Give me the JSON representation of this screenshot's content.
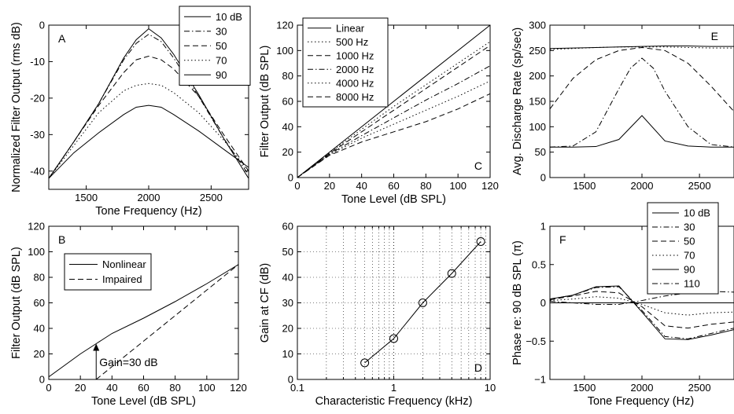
{
  "chart_data": [
    {
      "id": "A",
      "type": "line",
      "panel_label": "A",
      "xlabel": "Tone Frequency (Hz)",
      "ylabel": "Normalized Filter Output (rms dB)",
      "xlim": [
        1200,
        2800
      ],
      "ylim": [
        -45,
        0
      ],
      "xticks": [
        1500,
        2000,
        2500
      ],
      "yticks": [
        -40,
        -30,
        -20,
        -10,
        0
      ],
      "grid": false,
      "legend": "top-right",
      "series": [
        {
          "name": "10 dB",
          "dash": "solid",
          "x": [
            1200,
            1400,
            1600,
            1800,
            1900,
            2000,
            2100,
            2200,
            2400,
            2600,
            2800
          ],
          "y": [
            -42,
            -32,
            -21.5,
            -9,
            -4,
            -1,
            -3.5,
            -8,
            -19,
            -31,
            -42
          ]
        },
        {
          "name": "30",
          "dash": "dashdot",
          "x": [
            1200,
            1400,
            1600,
            1800,
            1900,
            2000,
            2100,
            2200,
            2400,
            2600,
            2800
          ],
          "y": [
            -42,
            -32,
            -21.5,
            -9.5,
            -5,
            -2.5,
            -4.5,
            -9,
            -19.5,
            -31,
            -41
          ]
        },
        {
          "name": "50",
          "dash": "dashed",
          "x": [
            1200,
            1400,
            1600,
            1800,
            1900,
            2000,
            2100,
            2200,
            2400,
            2600,
            2800
          ],
          "y": [
            -42,
            -32,
            -22,
            -13,
            -9.5,
            -8.5,
            -9.5,
            -12,
            -19.5,
            -30,
            -40
          ]
        },
        {
          "name": "70",
          "dash": "dotted",
          "x": [
            1200,
            1400,
            1600,
            1800,
            1900,
            2000,
            2100,
            2200,
            2400,
            2600,
            2800
          ],
          "y": [
            -42,
            -33,
            -24,
            -18,
            -16.5,
            -16,
            -16.5,
            -18.5,
            -24,
            -31.5,
            -40
          ]
        },
        {
          "name": "90",
          "dash": "solid",
          "x": [
            1200,
            1400,
            1600,
            1800,
            1900,
            2000,
            2100,
            2200,
            2400,
            2600,
            2800
          ],
          "y": [
            -42,
            -35,
            -29.5,
            -24.5,
            -22.5,
            -22,
            -22.5,
            -24.5,
            -29,
            -34,
            -39
          ]
        }
      ]
    },
    {
      "id": "C",
      "type": "line",
      "panel_label": "C",
      "xlabel": "Tone Level (dB SPL)",
      "ylabel": "Filter Output (dB SPL)",
      "xlim": [
        0,
        120
      ],
      "ylim": [
        0,
        120
      ],
      "xticks": [
        0,
        20,
        40,
        60,
        80,
        100,
        120
      ],
      "yticks": [
        0,
        20,
        40,
        60,
        80,
        100,
        120
      ],
      "grid": false,
      "legend": "top-left",
      "series": [
        {
          "name": "Linear",
          "dash": "solid",
          "x": [
            0,
            120
          ],
          "y": [
            0,
            120
          ]
        },
        {
          "name": "500 Hz",
          "dash": "dotted",
          "x": [
            0,
            20,
            40,
            60,
            80,
            100,
            120
          ],
          "y": [
            0,
            19.5,
            38,
            56,
            73,
            90,
            107
          ]
        },
        {
          "name": "1000 Hz",
          "dash": "dashed",
          "x": [
            0,
            20,
            40,
            60,
            80,
            100,
            120
          ],
          "y": [
            0,
            19,
            36,
            53,
            70,
            87,
            104
          ]
        },
        {
          "name": "2000 Hz",
          "dash": "dashdot",
          "x": [
            0,
            20,
            40,
            60,
            80,
            100,
            120
          ],
          "y": [
            0,
            18.5,
            33,
            47,
            61,
            74,
            88
          ]
        },
        {
          "name": "4000 Hz",
          "dash": "dotted",
          "x": [
            0,
            20,
            40,
            60,
            80,
            100,
            120
          ],
          "y": [
            0,
            18,
            31,
            42,
            53,
            64,
            76
          ]
        },
        {
          "name": "8000 Hz",
          "dash": "dashed",
          "x": [
            0,
            20,
            40,
            60,
            80,
            100,
            120
          ],
          "y": [
            0,
            17.5,
            28,
            36,
            44,
            54,
            66
          ]
        }
      ]
    },
    {
      "id": "E",
      "type": "line",
      "panel_label": "E",
      "xlabel": "",
      "ylabel": "Avg. Discharge Rate (sp/sec)",
      "xlim": [
        1200,
        2800
      ],
      "ylim": [
        0,
        300
      ],
      "xticks": [
        1500,
        2000,
        2500
      ],
      "yticks": [
        0,
        50,
        100,
        150,
        200,
        250,
        300
      ],
      "grid": false,
      "legend": "none",
      "series": [
        {
          "name": "10 dB",
          "dash": "solid",
          "x": [
            1200,
            1400,
            1600,
            1800,
            2000,
            2200,
            2400,
            2600,
            2800
          ],
          "y": [
            60,
            60,
            61,
            75,
            122,
            72,
            62,
            60,
            60
          ]
        },
        {
          "name": "30",
          "dash": "dashdot",
          "x": [
            1200,
            1400,
            1600,
            1800,
            1900,
            2000,
            2100,
            2200,
            2400,
            2600,
            2800
          ],
          "y": [
            60,
            62,
            90,
            175,
            215,
            235,
            215,
            170,
            100,
            65,
            60
          ]
        },
        {
          "name": "50",
          "dash": "dashed",
          "x": [
            1200,
            1400,
            1600,
            1800,
            2000,
            2200,
            2400,
            2600,
            2800
          ],
          "y": [
            135,
            195,
            232,
            250,
            256,
            250,
            225,
            180,
            130
          ]
        },
        {
          "name": "70",
          "dash": "dotted",
          "x": [
            1200,
            1400,
            1600,
            1800,
            2000,
            2200,
            2400,
            2600,
            2800
          ],
          "y": [
            252,
            254,
            256,
            257,
            257,
            257,
            256,
            255,
            255
          ]
        },
        {
          "name": "90",
          "dash": "solid",
          "x": [
            1200,
            1400,
            1600,
            1800,
            2000,
            2200,
            2400,
            2600,
            2800
          ],
          "y": [
            254,
            255,
            256,
            257,
            258,
            259,
            259,
            258,
            258
          ]
        }
      ]
    },
    {
      "id": "B",
      "type": "line",
      "panel_label": "B",
      "xlabel": "Tone Level (dB SPL)",
      "ylabel": "Filter Output (dB SPL)",
      "xlim": [
        0,
        120
      ],
      "ylim": [
        0,
        120
      ],
      "xticks": [
        0,
        20,
        40,
        60,
        80,
        100,
        120
      ],
      "yticks": [
        0,
        20,
        40,
        60,
        80,
        100,
        120
      ],
      "grid": false,
      "legend": "top-left",
      "annotation": {
        "text": "Gain=30 dB",
        "x": 30,
        "y_from": 0,
        "y_to": 28
      },
      "series": [
        {
          "name": "Nonlinear",
          "dash": "solid",
          "x": [
            0,
            20,
            30,
            40,
            60,
            80,
            100,
            120
          ],
          "y": [
            2,
            20,
            28,
            36,
            48,
            61,
            75,
            90
          ]
        },
        {
          "name": "Impaired",
          "dash": "dashed",
          "x": [
            30,
            60,
            90,
            120
          ],
          "y": [
            0,
            30,
            60,
            90
          ]
        }
      ]
    },
    {
      "id": "D",
      "type": "line",
      "panel_label": "D",
      "xlabel": "Characteristic Frequency (kHz)",
      "ylabel": "Gain at CF (dB)",
      "xscale": "log",
      "xlim": [
        0.1,
        10
      ],
      "ylim": [
        0,
        60
      ],
      "xticks": [
        0.1,
        1,
        10
      ],
      "xtick_labels": [
        "0.1",
        "1",
        "10"
      ],
      "yticks": [
        0,
        10,
        20,
        30,
        40,
        50,
        60
      ],
      "grid": true,
      "legend": "none",
      "series": [
        {
          "dash": "solid",
          "marker": "circle",
          "x": [
            0.5,
            1,
            2,
            4,
            8
          ],
          "y": [
            6.5,
            16,
            30,
            41.5,
            54
          ]
        }
      ]
    },
    {
      "id": "F",
      "type": "line",
      "panel_label": "F",
      "xlabel": "Tone Frequency (Hz)",
      "ylabel": "Phase re: 90 dB SPL (π)",
      "xlim": [
        1200,
        2800
      ],
      "ylim": [
        -1,
        1
      ],
      "xticks": [
        1500,
        2000,
        2500
      ],
      "yticks": [
        -1,
        -0.5,
        0,
        0.5,
        1
      ],
      "ytick_labels": [
        "−1",
        "−0.5",
        "0",
        "0.5",
        "1"
      ],
      "grid": false,
      "legend": "top-right",
      "series": [
        {
          "name": "10 dB",
          "dash": "solid",
          "x": [
            1200,
            1400,
            1600,
            1800,
            2000,
            2200,
            2400,
            2600,
            2800
          ],
          "y": [
            0.05,
            0.1,
            0.21,
            0.22,
            -0.12,
            -0.47,
            -0.48,
            -0.42,
            -0.35
          ]
        },
        {
          "name": "30",
          "dash": "dashdot",
          "x": [
            1200,
            1400,
            1600,
            1800,
            2000,
            2200,
            2400,
            2600,
            2800
          ],
          "y": [
            0.05,
            0.1,
            0.2,
            0.21,
            -0.1,
            -0.44,
            -0.47,
            -0.4,
            -0.33
          ]
        },
        {
          "name": "50",
          "dash": "dashed",
          "x": [
            1200,
            1400,
            1600,
            1800,
            2000,
            2200,
            2400,
            2600,
            2800
          ],
          "y": [
            0.04,
            0.09,
            0.15,
            0.13,
            -0.05,
            -0.3,
            -0.33,
            -0.28,
            -0.25
          ]
        },
        {
          "name": "70",
          "dash": "dotted",
          "x": [
            1200,
            1400,
            1600,
            1800,
            2000,
            2200,
            2400,
            2600,
            2800
          ],
          "y": [
            0.03,
            0.05,
            0.08,
            0.06,
            -0.02,
            -0.13,
            -0.16,
            -0.13,
            -0.12
          ]
        },
        {
          "name": "90",
          "dash": "solid",
          "x": [
            1200,
            2800
          ],
          "y": [
            0,
            0
          ]
        },
        {
          "name": "110",
          "dash": "dashdot",
          "x": [
            1200,
            1400,
            1600,
            1800,
            2000,
            2200,
            2400,
            2600,
            2800
          ],
          "y": [
            0.02,
            0.0,
            -0.02,
            -0.02,
            0.03,
            0.09,
            0.13,
            0.15,
            0.14
          ]
        }
      ]
    }
  ]
}
